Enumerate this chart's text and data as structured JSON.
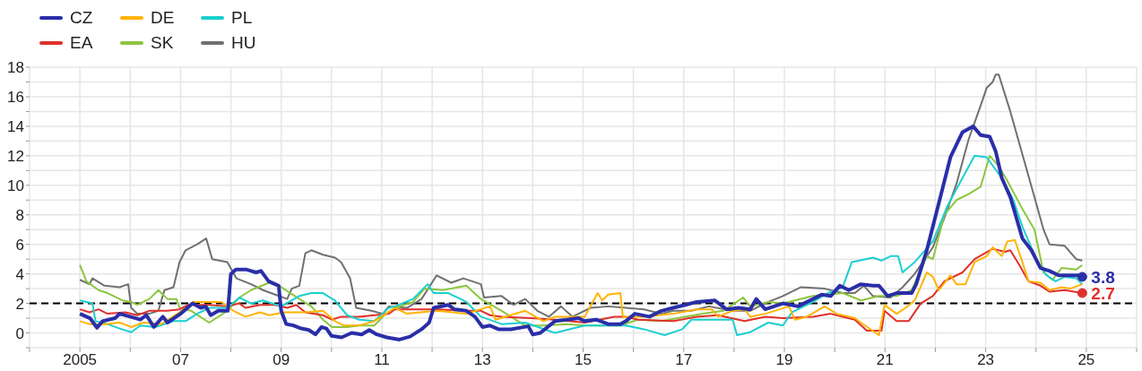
{
  "chart_data": {
    "type": "line",
    "legend": "top left",
    "grid": true,
    "xlim": [
      2004,
      2026
    ],
    "ylim": [
      -1,
      18
    ],
    "xticks": [
      {
        "value": 2004,
        "label": null
      },
      2005,
      {
        "value": 2006,
        "label": null
      },
      {
        "value": 2007,
        "label": "07"
      },
      {
        "value": 2008,
        "label": null
      },
      {
        "value": 2009,
        "label": "09"
      },
      {
        "value": 2010,
        "label": null
      },
      {
        "value": 2011,
        "label": "11"
      },
      {
        "value": 2012,
        "label": null
      },
      {
        "value": 2013,
        "label": "13"
      },
      {
        "value": 2014,
        "label": null
      },
      {
        "value": 2015,
        "label": "15"
      },
      {
        "value": 2016,
        "label": null
      },
      {
        "value": 2017,
        "label": "17"
      },
      {
        "value": 2018,
        "label": null
      },
      {
        "value": 2019,
        "label": "19"
      },
      {
        "value": 2020,
        "label": null
      },
      {
        "value": 2021,
        "label": "21"
      },
      {
        "value": 2022,
        "label": null
      },
      {
        "value": 2023,
        "label": "23"
      },
      {
        "value": 2024,
        "label": null
      },
      {
        "value": 2025,
        "label": "25"
      },
      {
        "value": 2026,
        "label": null
      }
    ],
    "yticks": [
      {
        "value": -1,
        "label": null
      },
      0,
      {
        "value": 1,
        "label": null
      },
      2,
      {
        "value": 3,
        "label": null
      },
      4,
      {
        "value": 5,
        "label": null
      },
      6,
      {
        "value": 7,
        "label": null
      },
      8,
      {
        "value": 9,
        "label": null
      },
      10,
      {
        "value": 11,
        "label": null
      },
      12,
      {
        "value": 13,
        "label": null
      },
      14,
      {
        "value": 15,
        "label": null
      },
      16,
      {
        "value": 17,
        "label": null
      },
      18
    ],
    "ref_lines": [
      {
        "axis": "y",
        "value": 2,
        "color": "#000000",
        "line_style": "dashed"
      }
    ],
    "annotations": [
      {
        "text": "3.8",
        "x": 2024.92,
        "y": 3.8
      },
      {
        "text": "2.7",
        "x": 2024.92,
        "y": 2.7
      }
    ],
    "series": [
      {
        "name": "CZ",
        "color": "#2a2ea8",
        "x": [
          2005.0,
          2005.2,
          2005.34,
          2005.45,
          2005.7,
          2005.79,
          2006.0,
          2006.2,
          2006.32,
          2006.47,
          2006.65,
          2006.74,
          2007.0,
          2007.24,
          2007.4,
          2007.5,
          2007.6,
          2007.75,
          2007.94,
          2008.0,
          2008.1,
          2008.3,
          2008.5,
          2008.6,
          2008.75,
          2008.95,
          2009.0,
          2009.1,
          2009.25,
          2009.4,
          2009.55,
          2009.68,
          2009.8,
          2009.9,
          2010.0,
          2010.2,
          2010.4,
          2010.6,
          2010.75,
          2010.9,
          2011.1,
          2011.35,
          2011.56,
          2011.79,
          2011.94,
          2012.03,
          2012.32,
          2012.44,
          2012.68,
          2012.85,
          2013.0,
          2013.15,
          2013.32,
          2013.56,
          2013.91,
          2014.0,
          2014.15,
          2014.44,
          2014.68,
          2014.91,
          2015.03,
          2015.26,
          2015.5,
          2015.74,
          2015.85,
          2016.03,
          2016.32,
          2016.56,
          2016.79,
          2017.03,
          2017.26,
          2017.62,
          2017.85,
          2018.09,
          2018.32,
          2018.44,
          2018.62,
          2018.97,
          2019.27,
          2019.57,
          2019.74,
          2019.92,
          2020.1,
          2020.28,
          2020.52,
          2020.76,
          2020.88,
          2021.05,
          2021.23,
          2021.53,
          2021.62,
          2021.83,
          2022.07,
          2022.3,
          2022.54,
          2022.75,
          2022.9,
          2023.08,
          2023.2,
          2023.32,
          2023.49,
          2023.61,
          2023.73,
          2023.91,
          2024.09,
          2024.27,
          2024.45,
          2024.68,
          2024.86,
          2024.92
        ],
        "values": [
          1.3,
          1.0,
          0.35,
          0.8,
          1.0,
          1.3,
          1.1,
          0.9,
          1.2,
          0.4,
          1.1,
          0.7,
          1.3,
          2.0,
          1.7,
          1.8,
          1.2,
          1.5,
          1.5,
          4.0,
          4.3,
          4.3,
          4.1,
          4.2,
          3.5,
          3.2,
          1.5,
          0.6,
          0.5,
          0.3,
          0.2,
          -0.1,
          0.4,
          0.3,
          -0.2,
          -0.3,
          0.0,
          -0.1,
          0.2,
          -0.1,
          -0.3,
          -0.45,
          -0.25,
          0.25,
          0.7,
          1.7,
          1.9,
          1.6,
          1.5,
          1.1,
          0.4,
          0.5,
          0.25,
          0.25,
          0.45,
          -0.1,
          0,
          0.8,
          0.9,
          1.0,
          0.8,
          0.9,
          0.6,
          0.6,
          0.8,
          1.3,
          1.1,
          1.5,
          1.7,
          1.9,
          2.1,
          2.2,
          1.6,
          1.7,
          1.6,
          2.3,
          1.6,
          2.0,
          1.8,
          2.3,
          2.6,
          2.5,
          3.2,
          2.9,
          3.3,
          3.2,
          3.2,
          2.5,
          2.7,
          2.7,
          3.3,
          5.6,
          8.8,
          11.9,
          13.6,
          14.0,
          13.4,
          13.3,
          12.3,
          10.5,
          9.2,
          7.8,
          6.4,
          5.6,
          4.4,
          4.2,
          3.9,
          3.9,
          3.9,
          3.8
        ]
      },
      {
        "name": "DE",
        "color": "#ffb300",
        "x": [
          2005.0,
          2005.19,
          2005.49,
          2005.79,
          2006.02,
          2006.26,
          2006.62,
          2006.98,
          2007.27,
          2007.81,
          2008.05,
          2008.29,
          2008.58,
          2008.76,
          2009.06,
          2009.24,
          2009.48,
          2009.83,
          2010.07,
          2010.25,
          2010.55,
          2010.85,
          2011.08,
          2011.26,
          2011.5,
          2012.09,
          2012.68,
          2013.15,
          2013.26,
          2013.85,
          2014.21,
          2014.44,
          2015.03,
          2015.29,
          2015.38,
          2015.5,
          2015.74,
          2015.79,
          2016.21,
          2016.79,
          2017.26,
          2017.56,
          2017.68,
          2017.97,
          2018.21,
          2018.32,
          2018.62,
          2019.09,
          2019.21,
          2019.45,
          2019.8,
          2020.04,
          2020.4,
          2020.52,
          2020.88,
          2020.99,
          2021.23,
          2021.41,
          2021.59,
          2021.83,
          2021.95,
          2022.07,
          2022.3,
          2022.42,
          2022.6,
          2022.78,
          2023.02,
          2023.14,
          2023.32,
          2023.43,
          2023.58,
          2023.73,
          2023.85,
          2024.09,
          2024.27,
          2024.51,
          2024.68,
          2024.92
        ],
        "values": [
          0.8,
          0.6,
          0.6,
          0.7,
          0.4,
          0.7,
          0.6,
          1.4,
          2.1,
          2.1,
          1.5,
          1.1,
          1.4,
          1.2,
          1.4,
          1.4,
          1.4,
          1.5,
          0.8,
          0.5,
          0.5,
          0.8,
          1.3,
          1.7,
          1.3,
          1.5,
          1.3,
          1.8,
          0.9,
          1.5,
          0.8,
          1.1,
          1.1,
          2.7,
          2.2,
          2.6,
          2.7,
          1.1,
          1.1,
          1.3,
          1.6,
          1.6,
          1.1,
          1.5,
          1.6,
          1.1,
          1.3,
          1.8,
          0.9,
          1.1,
          1.8,
          1.3,
          1.0,
          0.7,
          -0.15,
          1.9,
          1.3,
          1.7,
          2.2,
          4.1,
          3.8,
          2.9,
          3.9,
          3.3,
          3.3,
          4.8,
          5.2,
          5.8,
          5.2,
          6.2,
          6.3,
          4.8,
          3.5,
          3.4,
          2.9,
          3.1,
          3.0,
          3.3
        ]
      },
      {
        "name": "PL",
        "color": "#1ccfd0",
        "x": [
          2005.0,
          2005.25,
          2005.31,
          2005.55,
          2005.79,
          2006.02,
          2006.2,
          2006.5,
          2006.86,
          2007.1,
          2007.33,
          2007.57,
          2007.93,
          2008.17,
          2008.4,
          2008.64,
          2009.0,
          2009.36,
          2009.6,
          2009.83,
          2010.07,
          2010.31,
          2010.55,
          2010.85,
          2011.14,
          2011.26,
          2011.62,
          2011.91,
          2012.03,
          2012.32,
          2012.68,
          2012.97,
          2013.38,
          2013.85,
          2014.44,
          2015.03,
          2015.85,
          2016.21,
          2016.62,
          2016.97,
          2017.15,
          2017.97,
          2018.06,
          2018.32,
          2018.68,
          2018.97,
          2019.15,
          2019.57,
          2019.86,
          2020.16,
          2020.34,
          2020.76,
          2020.93,
          2021.11,
          2021.26,
          2021.35,
          2021.59,
          2021.95,
          2022.24,
          2022.54,
          2022.78,
          2023.02,
          2023.32,
          2023.55,
          2023.73,
          2024.03,
          2024.21,
          2024.39,
          2024.57,
          2024.8,
          2024.92
        ],
        "values": [
          2.2,
          2.0,
          0.8,
          0.6,
          0.3,
          0.05,
          0.5,
          0.4,
          0.8,
          0.8,
          1.3,
          1.7,
          1.7,
          2.4,
          2.0,
          2.2,
          1.8,
          2.5,
          2.7,
          2.7,
          2.2,
          1.2,
          0.9,
          0.8,
          1.7,
          1.8,
          2.3,
          3.3,
          2.7,
          2.7,
          2.1,
          1.1,
          0.6,
          0.7,
          0,
          0.5,
          0.5,
          0.25,
          -0.15,
          0.25,
          0.9,
          0.9,
          -0.15,
          0.05,
          0.7,
          0.5,
          1.4,
          2.1,
          2.7,
          3.1,
          4.8,
          5.1,
          4.9,
          5.2,
          5.2,
          4.1,
          4.8,
          6.2,
          8.6,
          10.5,
          12.0,
          11.9,
          10.5,
          9.0,
          7.2,
          4.8,
          3.9,
          3.5,
          3.8,
          3.7,
          3.3
        ]
      },
      {
        "name": "EA",
        "color": "#e0302a",
        "x": [
          2005.0,
          2005.19,
          2005.37,
          2005.55,
          2005.9,
          2006.14,
          2006.38,
          2006.74,
          2006.98,
          2007.15,
          2007.57,
          2007.93,
          2008.17,
          2008.29,
          2008.58,
          2008.88,
          2009.12,
          2009.3,
          2009.48,
          2009.83,
          2010.01,
          2010.19,
          2010.55,
          2010.85,
          2011.14,
          2011.26,
          2012.09,
          2012.68,
          2012.97,
          2013.15,
          2013.38,
          2013.97,
          2014.44,
          2015.03,
          2015.62,
          2015.85,
          2016.09,
          2016.79,
          2017.26,
          2017.68,
          2018.21,
          2018.62,
          2018.97,
          2019.57,
          2019.92,
          2020.16,
          2020.4,
          2020.64,
          2020.93,
          2020.99,
          2021.23,
          2021.47,
          2021.71,
          2021.95,
          2022.18,
          2022.54,
          2022.78,
          2023.14,
          2023.38,
          2023.49,
          2023.67,
          2023.85,
          2024.09,
          2024.27,
          2024.57,
          2024.92
        ],
        "values": [
          1.6,
          1.4,
          1.6,
          1.3,
          1.4,
          1.2,
          1.5,
          1.5,
          1.6,
          1.9,
          1.9,
          1.8,
          2.0,
          1.7,
          1.9,
          1.9,
          1.7,
          1.9,
          1.4,
          1.2,
          0.9,
          1.1,
          1.1,
          1.2,
          1.3,
          1.6,
          1.6,
          1.5,
          1.5,
          1.2,
          1.1,
          1.0,
          0.9,
          0.7,
          1.1,
          1.1,
          0.9,
          0.8,
          1.1,
          1.2,
          0.8,
          1.1,
          1.0,
          1.1,
          1.3,
          1.1,
          0.9,
          0.15,
          0.15,
          1.5,
          0.8,
          0.8,
          2.0,
          2.5,
          3.5,
          4.1,
          5.0,
          5.7,
          5.5,
          5.6,
          4.6,
          3.5,
          3.2,
          2.8,
          2.9,
          2.7
        ]
      },
      {
        "name": "SK",
        "color": "#8cc63f",
        "x": [
          2005.0,
          2005.13,
          2005.37,
          2005.55,
          2005.67,
          2005.85,
          2006.02,
          2006.14,
          2006.38,
          2006.56,
          2006.74,
          2006.92,
          2006.98,
          2007.21,
          2007.57,
          2007.93,
          2008.17,
          2008.4,
          2008.76,
          2009.0,
          2009.36,
          2009.6,
          2009.83,
          2010.01,
          2010.31,
          2010.55,
          2010.85,
          2011.08,
          2011.26,
          2011.62,
          2011.85,
          2012.21,
          2012.68,
          2012.97,
          2013.38,
          2013.85,
          2014.21,
          2014.68,
          2015.03,
          2015.74,
          2016.09,
          2016.56,
          2017.03,
          2017.38,
          2017.79,
          2018.18,
          2018.32,
          2018.68,
          2018.97,
          2019.57,
          2020.16,
          2020.52,
          2020.88,
          2021.23,
          2021.53,
          2021.83,
          2021.95,
          2022.18,
          2022.42,
          2022.66,
          2022.9,
          2023.08,
          2023.26,
          2023.43,
          2023.73,
          2023.97,
          2024.15,
          2024.33,
          2024.51,
          2024.8,
          2024.92
        ],
        "values": [
          4.6,
          3.5,
          2.9,
          2.7,
          2.5,
          2.2,
          2.1,
          1.9,
          2.3,
          2.9,
          2.3,
          2.3,
          1.7,
          1.5,
          0.7,
          1.5,
          2.4,
          2.9,
          3.4,
          3.1,
          2.3,
          1.8,
          0.9,
          0.4,
          0.4,
          0.5,
          0.5,
          1.3,
          1.7,
          2.1,
          3.0,
          2.9,
          3.2,
          2.3,
          1.5,
          0.5,
          0.5,
          0.6,
          0.5,
          0.5,
          0.9,
          0.8,
          1.1,
          1.3,
          1.5,
          2.4,
          1.8,
          2.1,
          2.0,
          2.5,
          2.7,
          2.2,
          2.5,
          2.5,
          2.9,
          5.2,
          5.0,
          8.0,
          9.0,
          9.4,
          9.9,
          12.0,
          11.3,
          10.3,
          8.4,
          7.0,
          4.1,
          3.6,
          4.4,
          4.3,
          4.6
        ]
      },
      {
        "name": "HU",
        "color": "#707070",
        "x": [
          2005.0,
          2005.19,
          2005.25,
          2005.49,
          2005.79,
          2005.96,
          2006.02,
          2006.14,
          2006.38,
          2006.56,
          2006.68,
          2006.86,
          2006.98,
          2007.1,
          2007.33,
          2007.51,
          2007.63,
          2007.93,
          2008.11,
          2008.4,
          2008.64,
          2008.88,
          2009.12,
          2009.21,
          2009.36,
          2009.48,
          2009.6,
          2009.83,
          2010.07,
          2010.19,
          2010.37,
          2010.49,
          2010.79,
          2011.02,
          2011.14,
          2011.5,
          2011.79,
          2012.09,
          2012.38,
          2012.62,
          2012.97,
          2013.03,
          2013.38,
          2013.62,
          2013.85,
          2014.09,
          2014.32,
          2014.56,
          2014.79,
          2015.15,
          2015.5,
          2015.85,
          2016.21,
          2016.56,
          2016.79,
          2017.15,
          2017.5,
          2017.97,
          2018.32,
          2018.68,
          2018.97,
          2019.33,
          2019.8,
          2020.16,
          2020.4,
          2020.58,
          2020.76,
          2021.11,
          2021.35,
          2021.59,
          2021.95,
          2022.18,
          2022.42,
          2022.66,
          2022.9,
          2023.02,
          2023.14,
          2023.2,
          2023.26,
          2023.49,
          2023.73,
          2023.97,
          2024.15,
          2024.27,
          2024.57,
          2024.8,
          2024.92
        ],
        "values": [
          3.6,
          3.3,
          3.7,
          3.2,
          3.1,
          3.3,
          1.7,
          1.3,
          1.3,
          1.5,
          2.9,
          3.1,
          4.8,
          5.6,
          6.0,
          6.4,
          5.0,
          4.8,
          3.7,
          3.3,
          2.9,
          2.6,
          2.3,
          3.0,
          3.2,
          5.4,
          5.6,
          5.3,
          5.1,
          4.8,
          3.7,
          1.7,
          1.5,
          1.3,
          1.8,
          1.7,
          2.3,
          3.9,
          3.4,
          3.7,
          3.3,
          2.4,
          2.5,
          1.9,
          2.3,
          1.5,
          1.1,
          1.8,
          1.1,
          1.7,
          1.8,
          1.7,
          1.6,
          1.3,
          1.5,
          1.5,
          1.8,
          1.5,
          1.5,
          2.1,
          2.5,
          3.1,
          3.0,
          2.7,
          2.7,
          3.2,
          2.5,
          2.4,
          3.1,
          4.0,
          5.8,
          7.8,
          10.1,
          13.1,
          15.4,
          16.6,
          17.0,
          17.5,
          17.5,
          15.0,
          12.1,
          9.2,
          7.0,
          6.0,
          5.9,
          5.0,
          4.9
        ]
      }
    ]
  }
}
